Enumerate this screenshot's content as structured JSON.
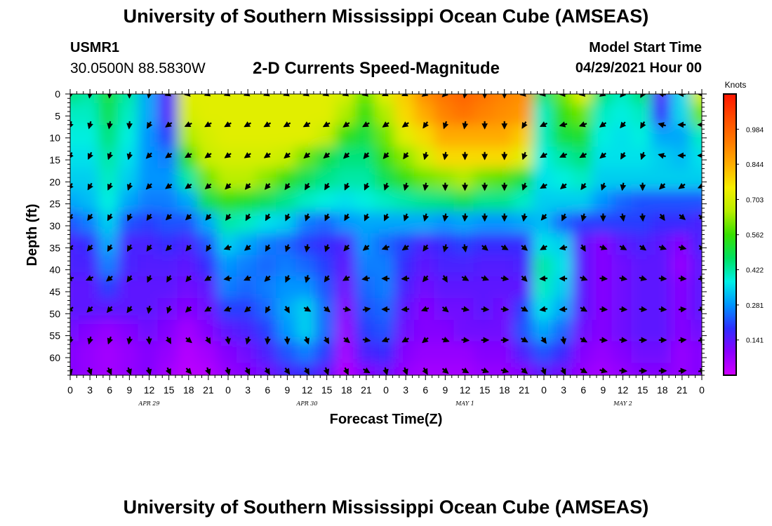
{
  "header": {
    "title": "University of Southern Mississippi Ocean Cube (AMSEAS)",
    "station_id": "USMR1",
    "station_coords": "30.0500N  88.5830W",
    "subtitle": "2-D Currents Speed-Magnitude",
    "model_start_label": "Model Start Time",
    "model_start_value": "04/29/2021 Hour 00"
  },
  "footer": {
    "title": "University of Southern Mississippi Ocean Cube (AMSEAS)"
  },
  "chart_data": {
    "type": "heatmap",
    "title": "2-D Currents Speed-Magnitude",
    "xlabel": "Forecast Time(Z)",
    "ylabel": "Depth (ft)",
    "x_tick_labels": [
      "0",
      "3",
      "6",
      "9",
      "12",
      "15",
      "18",
      "21",
      "0",
      "3",
      "6",
      "9",
      "12",
      "15",
      "18",
      "21",
      "0",
      "3",
      "6",
      "9",
      "12",
      "15",
      "18",
      "21",
      "0",
      "3",
      "6",
      "9",
      "12",
      "15",
      "18",
      "21",
      "0"
    ],
    "x_range_hours": [
      0,
      96
    ],
    "date_labels": [
      {
        "label": "APR 29",
        "hour": 12
      },
      {
        "label": "APR 30",
        "hour": 36
      },
      {
        "label": "MAY 1",
        "hour": 60
      },
      {
        "label": "MAY 2",
        "hour": 84
      }
    ],
    "y_tick_labels": [
      "0",
      "5",
      "10",
      "15",
      "20",
      "25",
      "30",
      "35",
      "40",
      "45",
      "50",
      "55",
      "60"
    ],
    "y_range_ft": [
      0,
      64
    ],
    "colorbar": {
      "unit": "Knots",
      "tick_labels": [
        "0.984",
        "0.844",
        "0.703",
        "0.562",
        "0.422",
        "0.281",
        "0.141"
      ],
      "range": [
        0,
        1.125
      ]
    },
    "color_scale": [
      "#d000ff",
      "#8a00ff",
      "#2e2eff",
      "#0095ff",
      "#00f0e6",
      "#00e060",
      "#38e000",
      "#b8ee00",
      "#f5ee00",
      "#ffae00",
      "#ff7800",
      "#ff4a00",
      "#ff1500"
    ],
    "speed_knots": [
      [
        0.45,
        0.42,
        0.5,
        0.42,
        0.3,
        0.15,
        0.72,
        0.72,
        0.72,
        0.72,
        0.72,
        0.72,
        0.72,
        0.72,
        0.7,
        0.6,
        0.72,
        0.8,
        0.9,
        0.95,
        0.98,
        0.95,
        0.92,
        0.9,
        0.45,
        0.6,
        0.72,
        0.45,
        0.4,
        0.45,
        0.15,
        0.35,
        0.7
      ],
      [
        0.4,
        0.4,
        0.48,
        0.4,
        0.3,
        0.15,
        0.7,
        0.72,
        0.72,
        0.72,
        0.72,
        0.72,
        0.72,
        0.72,
        0.65,
        0.55,
        0.65,
        0.78,
        0.85,
        0.92,
        0.95,
        0.92,
        0.9,
        0.88,
        0.4,
        0.55,
        0.6,
        0.4,
        0.38,
        0.4,
        0.18,
        0.35,
        0.6
      ],
      [
        0.38,
        0.38,
        0.45,
        0.38,
        0.28,
        0.2,
        0.65,
        0.7,
        0.72,
        0.72,
        0.72,
        0.72,
        0.72,
        0.68,
        0.55,
        0.5,
        0.6,
        0.72,
        0.78,
        0.85,
        0.85,
        0.85,
        0.85,
        0.8,
        0.4,
        0.5,
        0.52,
        0.38,
        0.36,
        0.38,
        0.3,
        0.3,
        0.4
      ],
      [
        0.36,
        0.36,
        0.42,
        0.36,
        0.28,
        0.26,
        0.55,
        0.68,
        0.7,
        0.7,
        0.7,
        0.68,
        0.6,
        0.5,
        0.45,
        0.45,
        0.55,
        0.62,
        0.7,
        0.78,
        0.78,
        0.78,
        0.78,
        0.72,
        0.38,
        0.42,
        0.45,
        0.36,
        0.36,
        0.36,
        0.34,
        0.32,
        0.36
      ],
      [
        0.34,
        0.34,
        0.4,
        0.34,
        0.28,
        0.28,
        0.42,
        0.6,
        0.66,
        0.66,
        0.62,
        0.55,
        0.48,
        0.44,
        0.42,
        0.42,
        0.48,
        0.55,
        0.6,
        0.62,
        0.65,
        0.6,
        0.58,
        0.5,
        0.36,
        0.38,
        0.4,
        0.34,
        0.34,
        0.34,
        0.34,
        0.34,
        0.34
      ],
      [
        0.3,
        0.32,
        0.38,
        0.3,
        0.26,
        0.26,
        0.3,
        0.48,
        0.55,
        0.52,
        0.48,
        0.44,
        0.4,
        0.38,
        0.36,
        0.38,
        0.4,
        0.42,
        0.44,
        0.45,
        0.48,
        0.44,
        0.44,
        0.4,
        0.34,
        0.34,
        0.34,
        0.28,
        0.24,
        0.22,
        0.22,
        0.22,
        0.22
      ],
      [
        0.22,
        0.26,
        0.34,
        0.22,
        0.2,
        0.22,
        0.22,
        0.3,
        0.42,
        0.4,
        0.36,
        0.34,
        0.26,
        0.24,
        0.28,
        0.3,
        0.3,
        0.3,
        0.3,
        0.28,
        0.3,
        0.28,
        0.28,
        0.3,
        0.32,
        0.24,
        0.2,
        0.2,
        0.2,
        0.2,
        0.18,
        0.18,
        0.16
      ],
      [
        0.16,
        0.18,
        0.3,
        0.16,
        0.16,
        0.18,
        0.16,
        0.22,
        0.34,
        0.3,
        0.26,
        0.24,
        0.2,
        0.18,
        0.16,
        0.28,
        0.24,
        0.2,
        0.16,
        0.18,
        0.2,
        0.18,
        0.18,
        0.18,
        0.36,
        0.34,
        0.14,
        0.1,
        0.14,
        0.16,
        0.14,
        0.1,
        0.16
      ],
      [
        0.16,
        0.16,
        0.26,
        0.16,
        0.15,
        0.15,
        0.14,
        0.18,
        0.28,
        0.26,
        0.24,
        0.26,
        0.24,
        0.2,
        0.14,
        0.26,
        0.26,
        0.18,
        0.14,
        0.16,
        0.16,
        0.15,
        0.15,
        0.16,
        0.42,
        0.36,
        0.14,
        0.1,
        0.12,
        0.14,
        0.14,
        0.08,
        0.14
      ],
      [
        0.14,
        0.14,
        0.2,
        0.14,
        0.14,
        0.14,
        0.12,
        0.14,
        0.26,
        0.24,
        0.26,
        0.28,
        0.28,
        0.22,
        0.12,
        0.24,
        0.26,
        0.16,
        0.12,
        0.14,
        0.14,
        0.14,
        0.14,
        0.14,
        0.4,
        0.34,
        0.14,
        0.1,
        0.12,
        0.14,
        0.14,
        0.1,
        0.14
      ],
      [
        0.14,
        0.14,
        0.14,
        0.14,
        0.14,
        0.12,
        0.1,
        0.12,
        0.2,
        0.2,
        0.24,
        0.3,
        0.34,
        0.24,
        0.1,
        0.22,
        0.24,
        0.14,
        0.1,
        0.12,
        0.12,
        0.14,
        0.12,
        0.2,
        0.36,
        0.3,
        0.14,
        0.1,
        0.12,
        0.14,
        0.14,
        0.1,
        0.14
      ],
      [
        0.12,
        0.1,
        0.08,
        0.1,
        0.12,
        0.1,
        0.06,
        0.1,
        0.14,
        0.16,
        0.2,
        0.28,
        0.34,
        0.24,
        0.08,
        0.2,
        0.22,
        0.12,
        0.1,
        0.1,
        0.12,
        0.12,
        0.12,
        0.22,
        0.3,
        0.24,
        0.12,
        0.1,
        0.12,
        0.14,
        0.14,
        0.1,
        0.12
      ],
      [
        0.1,
        0.08,
        0.06,
        0.08,
        0.1,
        0.08,
        0.04,
        0.06,
        0.1,
        0.12,
        0.16,
        0.22,
        0.26,
        0.2,
        0.06,
        0.16,
        0.18,
        0.1,
        0.08,
        0.08,
        0.08,
        0.1,
        0.1,
        0.16,
        0.22,
        0.18,
        0.1,
        0.08,
        0.1,
        0.12,
        0.12,
        0.08,
        0.1
      ],
      [
        0.1,
        0.08,
        0.06,
        0.08,
        0.1,
        0.06,
        0.03,
        0.04,
        0.08,
        0.1,
        0.12,
        0.16,
        0.18,
        0.14,
        0.04,
        0.1,
        0.12,
        0.08,
        0.06,
        0.06,
        0.06,
        0.08,
        0.08,
        0.1,
        0.14,
        0.12,
        0.08,
        0.06,
        0.08,
        0.1,
        0.1,
        0.08,
        0.1
      ]
    ],
    "arrow_depths_ft": [
      0,
      7,
      14,
      21,
      28,
      35,
      42,
      49,
      56,
      63
    ],
    "arrow_hours": [
      0,
      3,
      6,
      9,
      12,
      15,
      18,
      21,
      24,
      27,
      30,
      33,
      36,
      39,
      42,
      45,
      48,
      51,
      54,
      57,
      60,
      63,
      66,
      69,
      72,
      75,
      78,
      81,
      84,
      87,
      90,
      93,
      96
    ],
    "arrow_direction_deg": [
      [
        260,
        262,
        265,
        270,
        260,
        200,
        190,
        200,
        200,
        200,
        200,
        200,
        200,
        200,
        200,
        195,
        205,
        205,
        215,
        225,
        260,
        270,
        270,
        190,
        190,
        185,
        190,
        215,
        230,
        240,
        170,
        180,
        180
      ],
      [
        250,
        255,
        260,
        265,
        240,
        215,
        205,
        210,
        210,
        210,
        210,
        210,
        210,
        210,
        215,
        210,
        215,
        215,
        235,
        250,
        260,
        270,
        270,
        240,
        205,
        195,
        200,
        215,
        230,
        240,
        165,
        180,
        180
      ],
      [
        240,
        245,
        250,
        255,
        225,
        215,
        210,
        215,
        215,
        215,
        215,
        220,
        220,
        220,
        225,
        230,
        230,
        235,
        255,
        260,
        270,
        270,
        270,
        250,
        210,
        205,
        210,
        220,
        240,
        250,
        165,
        180,
        180
      ],
      [
        235,
        240,
        245,
        250,
        225,
        215,
        215,
        220,
        225,
        230,
        230,
        235,
        240,
        240,
        245,
        245,
        250,
        255,
        260,
        270,
        270,
        270,
        270,
        250,
        210,
        220,
        235,
        250,
        260,
        270,
        225,
        215,
        205
      ],
      [
        230,
        235,
        240,
        245,
        235,
        225,
        225,
        230,
        235,
        240,
        240,
        245,
        250,
        245,
        240,
        245,
        245,
        250,
        255,
        260,
        265,
        270,
        270,
        260,
        230,
        245,
        255,
        270,
        280,
        275,
        305,
        320,
        330
      ],
      [
        220,
        230,
        240,
        240,
        235,
        225,
        230,
        240,
        200,
        220,
        240,
        250,
        260,
        250,
        230,
        220,
        200,
        215,
        235,
        255,
        280,
        320,
        330,
        320,
        210,
        195,
        300,
        340,
        330,
        325,
        340,
        345,
        320
      ],
      [
        195,
        205,
        220,
        235,
        245,
        240,
        230,
        210,
        190,
        205,
        225,
        245,
        255,
        235,
        210,
        190,
        180,
        185,
        230,
        300,
        330,
        340,
        350,
        315,
        185,
        180,
        340,
        355,
        350,
        345,
        355,
        355,
        10
      ],
      [
        215,
        225,
        230,
        235,
        260,
        250,
        225,
        210,
        200,
        220,
        240,
        300,
        330,
        320,
        350,
        10,
        180,
        185,
        200,
        320,
        350,
        355,
        355,
        330,
        190,
        185,
        330,
        355,
        355,
        355,
        355,
        5,
        15
      ],
      [
        255,
        255,
        250,
        260,
        275,
        300,
        320,
        300,
        280,
        255,
        265,
        275,
        290,
        300,
        320,
        350,
        200,
        210,
        220,
        340,
        355,
        0,
        0,
        330,
        305,
        280,
        330,
        355,
        355,
        0,
        0,
        5,
        10
      ],
      [
        285,
        290,
        295,
        290,
        285,
        295,
        310,
        290,
        285,
        295,
        300,
        305,
        300,
        290,
        295,
        330,
        285,
        290,
        300,
        320,
        330,
        340,
        345,
        320,
        290,
        295,
        330,
        345,
        355,
        0,
        0,
        5,
        10
      ]
    ]
  }
}
